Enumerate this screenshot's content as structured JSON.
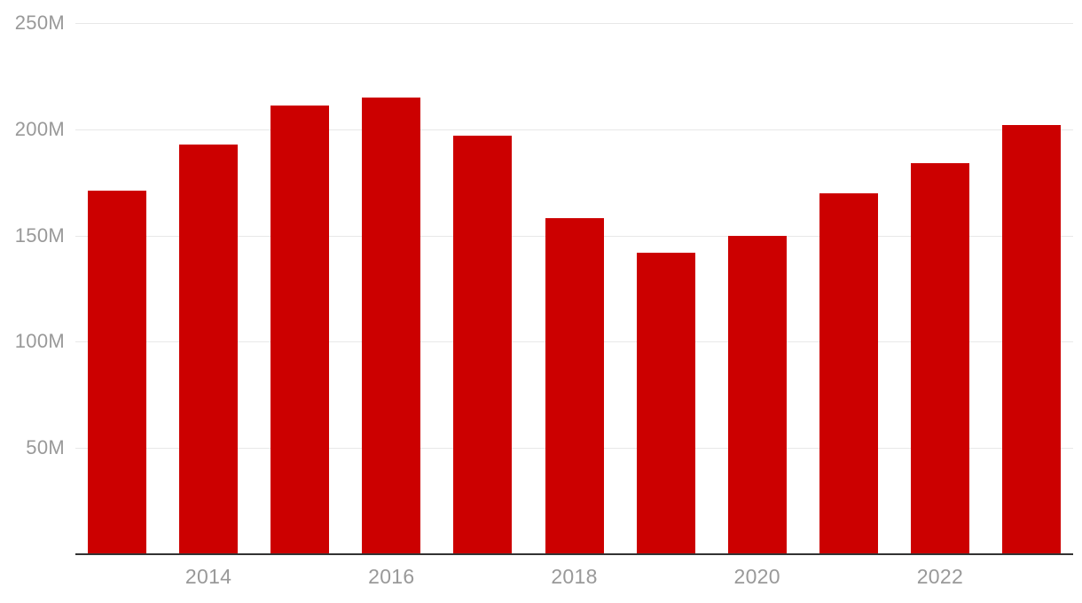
{
  "chart_data": {
    "type": "bar",
    "categories": [
      "2013",
      "2014",
      "2015",
      "2016",
      "2017",
      "2018",
      "2019",
      "2020",
      "2021",
      "2022",
      "2023"
    ],
    "values": [
      171,
      193,
      211,
      215,
      197,
      158,
      142,
      150,
      170,
      184,
      202
    ],
    "value_unit": "M",
    "title": "",
    "xlabel": "",
    "ylabel": "",
    "ylim": [
      0,
      250
    ],
    "y_ticks": [
      {
        "value": 250,
        "label": "250M"
      },
      {
        "value": 200,
        "label": "200M"
      },
      {
        "value": 150,
        "label": "150M"
      },
      {
        "value": 100,
        "label": "100M"
      },
      {
        "value": 50,
        "label": "50M"
      }
    ],
    "x_ticks": [
      {
        "label": "2014",
        "category_index": 1
      },
      {
        "label": "2016",
        "category_index": 3
      },
      {
        "label": "2018",
        "category_index": 5
      },
      {
        "label": "2020",
        "category_index": 7
      },
      {
        "label": "2022",
        "category_index": 9
      }
    ],
    "grid": "horizontal",
    "legend_position": "none",
    "colors": {
      "bar": "#cc0000",
      "axis_line": "#333333",
      "gridline": "#e8e8e8",
      "tick_label": "#999999",
      "background": "#ffffff"
    }
  }
}
